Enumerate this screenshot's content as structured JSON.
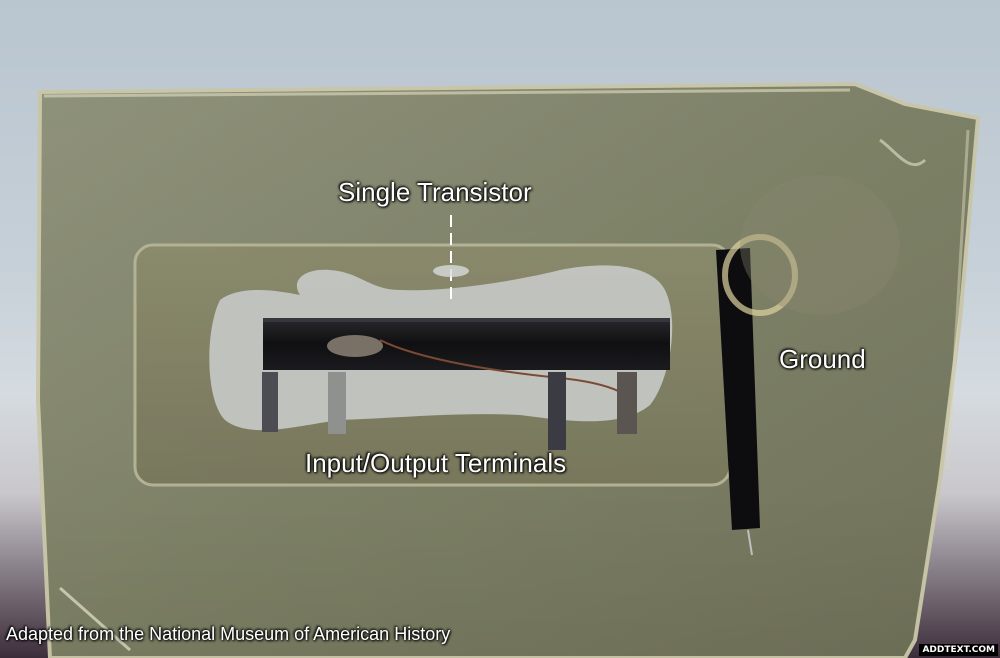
{
  "labels": {
    "transistor": "Single Transistor",
    "ground": "Ground",
    "terminals": "Input/Output Terminals",
    "credit": "Adapted from the National Museum of American History",
    "watermark": "ADDTEXT.COM"
  },
  "colors": {
    "resin": "#7f8468",
    "transistor_bar": "#0f0f12",
    "mount_patch": "#c5c8c5",
    "wire": "#7b4a34",
    "label_text": "#ffffff"
  }
}
